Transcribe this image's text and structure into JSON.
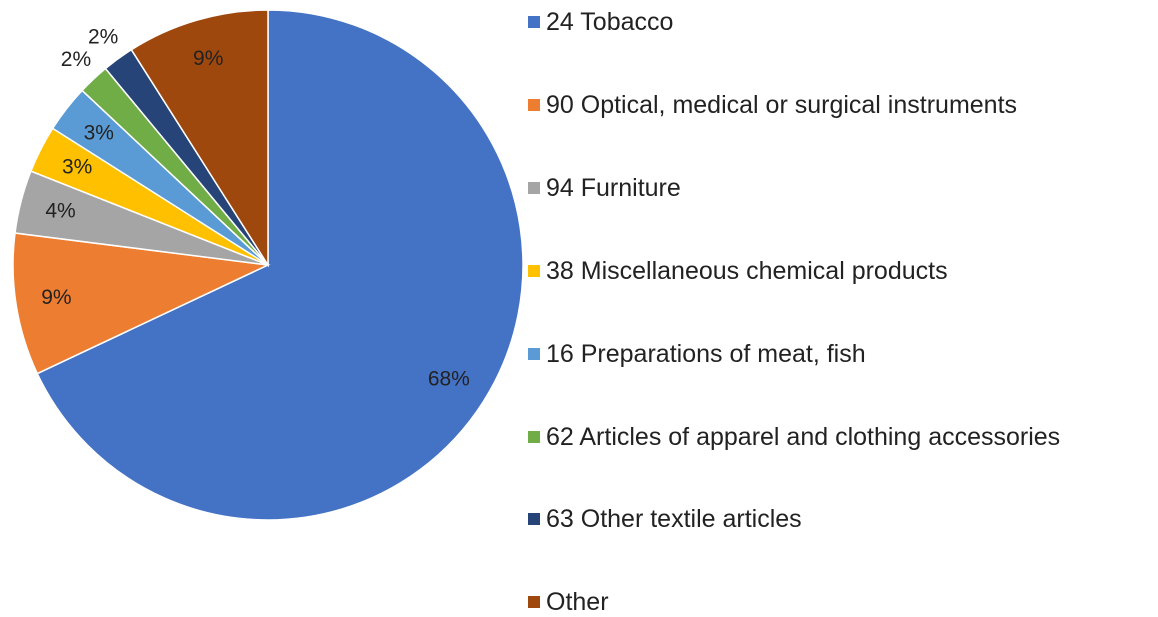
{
  "chart_data": {
    "type": "pie",
    "categories": [
      "24 Tobacco",
      "90 Optical, medical or surgical instruments",
      "94 Furniture",
      "38 Miscellaneous chemical products",
      "16 Preparations of meat, fish",
      "62 Articles of apparel and clothing accessories",
      "63 Other textile articles",
      "Other"
    ],
    "values": [
      68,
      9,
      4,
      3,
      3,
      2,
      2,
      9
    ],
    "value_labels": [
      "68%",
      "9%",
      "4%",
      "3%",
      "3%",
      "2%",
      "2%",
      "9%"
    ],
    "colors": [
      "#4472c4",
      "#ed7d31",
      "#a5a5a5",
      "#ffc000",
      "#5b9bd5",
      "#70ad47",
      "#264478",
      "#9e480e"
    ],
    "legend": "right"
  }
}
